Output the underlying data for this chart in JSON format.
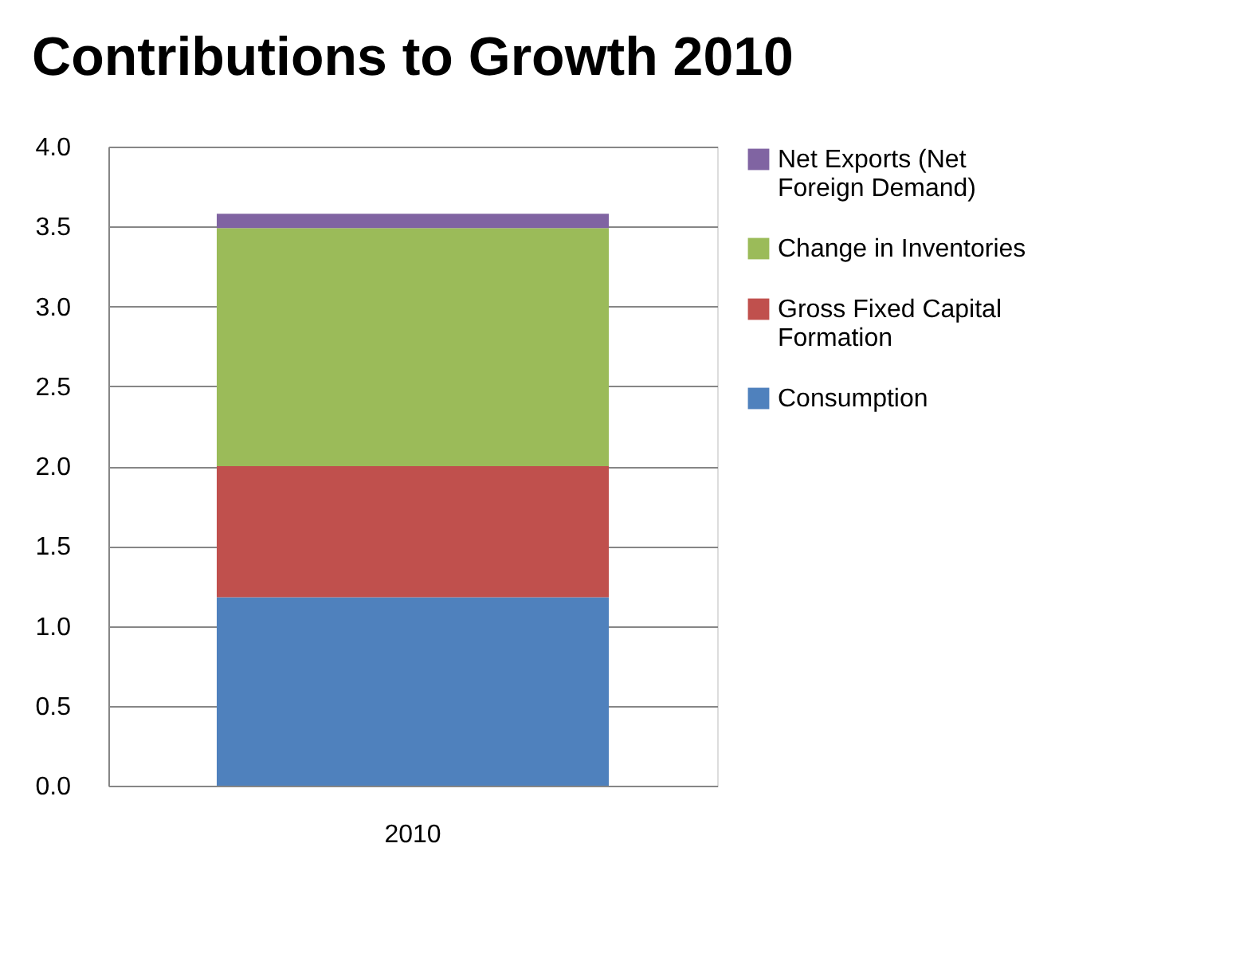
{
  "chart_data": {
    "type": "bar",
    "title": "Contributions to Growth 2010",
    "categories": [
      "2010"
    ],
    "stacked": true,
    "series": [
      {
        "name": "Consumption",
        "color": "#4f81bd",
        "values": [
          1.18
        ]
      },
      {
        "name": "Gross Fixed Capital Formation",
        "color": "#c0504d",
        "values": [
          0.82
        ]
      },
      {
        "name": "Change in  Inventories",
        "color": "#9bbb59",
        "values": [
          1.49
        ]
      },
      {
        "name": "Net Exports (Net Foreign Demand)",
        "color": "#8064a2",
        "values": [
          0.09
        ]
      }
    ],
    "ylim": [
      0,
      4.0
    ],
    "yticks": [
      {
        "value": 0,
        "label": "0.0"
      },
      {
        "value": 0.5,
        "label": "0.5"
      },
      {
        "value": 1,
        "label": "1.0"
      },
      {
        "value": 1.5,
        "label": "1.5"
      },
      {
        "value": 2,
        "label": "2.0"
      },
      {
        "value": 2.5,
        "label": "2.5"
      },
      {
        "value": 3,
        "label": "3.0"
      },
      {
        "value": 3.5,
        "label": "3.5"
      },
      {
        "value": 4,
        "label": "4.0"
      }
    ],
    "grid": "y",
    "legend": "right"
  }
}
